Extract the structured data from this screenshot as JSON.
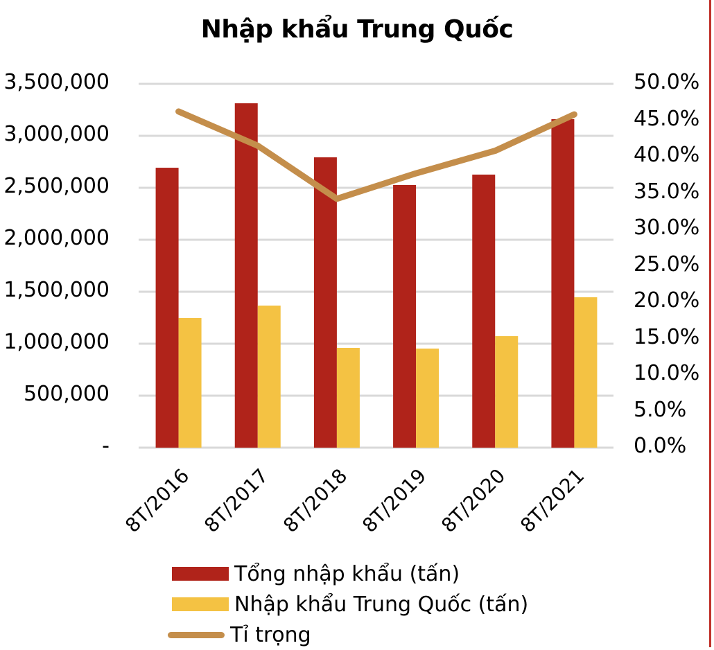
{
  "title": "Nhập khẩu Trung Quốc",
  "colors": {
    "total_import": "#b0231a",
    "china_import": "#f4c243",
    "share_line": "#c48e4b",
    "gridline": "#d9d9d9",
    "border": "#c0322b"
  },
  "axes": {
    "left_ticks": [
      "3,500,000",
      "3,000,000",
      "2,500,000",
      "2,000,000",
      "1,500,000",
      "1,000,000",
      "500,000",
      "-"
    ],
    "right_ticks": [
      "50.0%",
      "45.0%",
      "40.0%",
      "35.0%",
      "30.0%",
      "25.0%",
      "20.0%",
      "15.0%",
      "10.0%",
      "5.0%",
      "0.0%"
    ],
    "x_ticks": [
      "8T/2016",
      "8T/2017",
      "8T/2018",
      "8T/2019",
      "8T/2020",
      "8T/2021"
    ]
  },
  "legend": {
    "items": [
      {
        "label": "Tổng nhập khẩu (tấn)",
        "type": "bar"
      },
      {
        "label": "Nhập khẩu Trung Quốc (tấn)",
        "type": "bar"
      },
      {
        "label": "Tỉ trọng",
        "type": "line"
      }
    ]
  },
  "chart_data": {
    "type": "bar",
    "title": "Nhập khẩu Trung Quốc",
    "categories": [
      "8T/2016",
      "8T/2017",
      "8T/2018",
      "8T/2019",
      "8T/2020",
      "8T/2021"
    ],
    "series": [
      {
        "name": "Tổng nhập khẩu (tấn)",
        "type": "bar",
        "axis": "left",
        "values": [
          2693000,
          3313000,
          2793000,
          2527000,
          2627000,
          3160000
        ]
      },
      {
        "name": "Nhập khẩu Trung Quốc (tấn)",
        "type": "bar",
        "axis": "left",
        "values": [
          1247000,
          1367000,
          960000,
          953000,
          1073000,
          1447000
        ]
      },
      {
        "name": "Tỉ trọng",
        "type": "line",
        "axis": "right",
        "values": [
          46.2,
          41.5,
          34.2,
          37.7,
          40.8,
          45.8
        ]
      }
    ],
    "xlabel": "",
    "ylabel": "",
    "ylim": [
      0,
      3500000
    ],
    "y2lim": [
      0,
      50
    ],
    "y_ticks": [
      0,
      500000,
      1000000,
      1500000,
      2000000,
      2500000,
      3000000,
      3500000
    ],
    "y2_ticks": [
      0,
      5,
      10,
      15,
      20,
      25,
      30,
      35,
      40,
      45,
      50
    ],
    "grid": true,
    "legend_position": "bottom"
  }
}
